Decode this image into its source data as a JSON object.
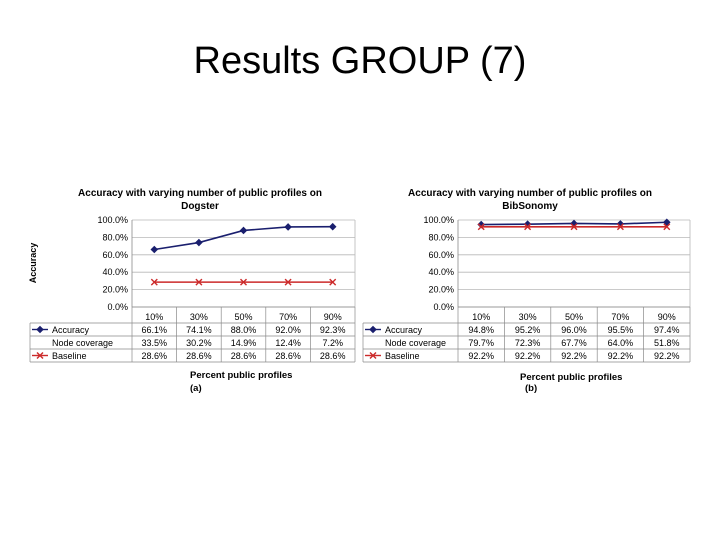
{
  "slide": {
    "title": "Results GROUP (7)"
  },
  "colors": {
    "accuracy": "#1a1f6e",
    "baseline": "#cc2a2a",
    "grid": "#b8b8b8",
    "table": "#8a8a8a"
  },
  "chart_data": [
    {
      "type": "line",
      "title_lines": [
        "Accuracy with varying number of public profiles on",
        "Dogster"
      ],
      "ylabel": "Accuracy",
      "xlabel": "Percent public profiles",
      "caption": "(a)",
      "ylim": [
        0,
        100
      ],
      "yticks": [
        "0.0%",
        "20.0%",
        "40.0%",
        "60.0%",
        "80.0%",
        "100.0%"
      ],
      "categories": [
        "10%",
        "30%",
        "50%",
        "70%",
        "90%"
      ],
      "series": [
        {
          "name": "Accuracy",
          "values": [
            66.1,
            74.1,
            88.0,
            92.0,
            92.3
          ],
          "plotted": true,
          "marker": "diamond",
          "color": "#1a1f6e"
        },
        {
          "name": "Node coverage",
          "values": [
            33.5,
            30.2,
            14.9,
            12.4,
            7.2
          ],
          "plotted": false,
          "color": "#999999"
        },
        {
          "name": "Baseline",
          "values": [
            28.6,
            28.6,
            28.6,
            28.6,
            28.6
          ],
          "plotted": true,
          "marker": "x",
          "color": "#cc2a2a"
        }
      ],
      "table": [
        {
          "label": "Accuracy",
          "cells": [
            "66.1%",
            "74.1%",
            "88.0%",
            "92.0%",
            "92.3%"
          ],
          "key": "diamond"
        },
        {
          "label": "Node coverage",
          "cells": [
            "33.5%",
            "30.2%",
            "14.9%",
            "12.4%",
            "7.2%"
          ],
          "key": "none"
        },
        {
          "label": "Baseline",
          "cells": [
            "28.6%",
            "28.6%",
            "28.6%",
            "28.6%",
            "28.6%"
          ],
          "key": "x"
        }
      ]
    },
    {
      "type": "line",
      "title_lines": [
        "Accuracy with varying number of public profiles on",
        "BibSonomy"
      ],
      "ylabel": "",
      "xlabel": "Percent public profiles",
      "caption": "(b)",
      "ylim": [
        0,
        100
      ],
      "yticks": [
        "0.0%",
        "20.0%",
        "40.0%",
        "60.0%",
        "80.0%",
        "100.0%"
      ],
      "categories": [
        "10%",
        "30%",
        "50%",
        "70%",
        "90%"
      ],
      "series": [
        {
          "name": "Accuracy",
          "values": [
            94.8,
            95.2,
            96.0,
            95.5,
            97.4
          ],
          "plotted": true,
          "marker": "diamond",
          "color": "#1a1f6e"
        },
        {
          "name": "Node coverage",
          "values": [
            79.7,
            72.3,
            67.7,
            64.0,
            51.8
          ],
          "plotted": false,
          "color": "#999999"
        },
        {
          "name": "Baseline",
          "values": [
            92.2,
            92.2,
            92.2,
            92.2,
            92.2
          ],
          "plotted": true,
          "marker": "x",
          "color": "#cc2a2a"
        }
      ],
      "table": [
        {
          "label": "Accuracy",
          "cells": [
            "94.8%",
            "95.2%",
            "96.0%",
            "95.5%",
            "97.4%"
          ],
          "key": "diamond"
        },
        {
          "label": "Node coverage",
          "cells": [
            "79.7%",
            "72.3%",
            "67.7%",
            "64.0%",
            "51.8%"
          ],
          "key": "none"
        },
        {
          "label": "Baseline",
          "cells": [
            "92.2%",
            "92.2%",
            "92.2%",
            "92.2%",
            "92.2%"
          ],
          "key": "x"
        }
      ]
    }
  ]
}
